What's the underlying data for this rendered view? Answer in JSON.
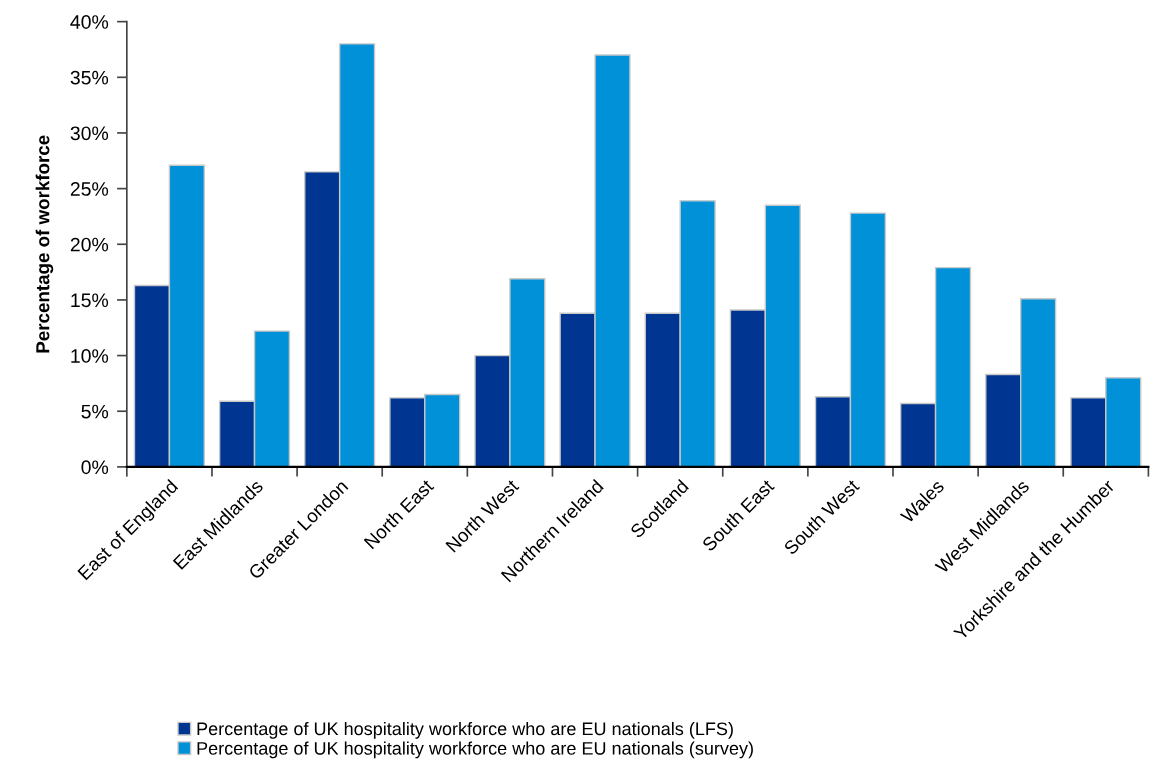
{
  "chart_data": {
    "type": "bar",
    "ylabel": "Percentage of workforce",
    "categories": [
      "East of England",
      "East Midlands",
      "Greater London",
      "North East",
      "North West",
      "Northern Ireland",
      "Scotland",
      "South East",
      "South West",
      "Wales",
      "West Midlands",
      "Yorkshire and the Humber"
    ],
    "series": [
      {
        "name": "Percentage of UK hospitality workforce who are EU nationals (LFS)",
        "color": "#003591",
        "values": [
          16.3,
          5.9,
          26.5,
          6.2,
          10.0,
          13.8,
          13.8,
          14.1,
          6.3,
          5.7,
          8.3,
          6.2
        ]
      },
      {
        "name": "Percentage of UK hospitality workforce who are EU nationals (survey)",
        "color": "#0091d9",
        "values": [
          27.1,
          12.2,
          38.0,
          6.5,
          16.9,
          37.0,
          23.9,
          23.5,
          22.8,
          17.9,
          15.1,
          8.0
        ]
      }
    ],
    "ylim": [
      0,
      40
    ],
    "yticks": [
      {
        "value": 0,
        "label": "0%"
      },
      {
        "value": 5,
        "label": "5%"
      },
      {
        "value": 10,
        "label": "10%"
      },
      {
        "value": 15,
        "label": "15%"
      },
      {
        "value": 20,
        "label": "20%"
      },
      {
        "value": 25,
        "label": "25%"
      },
      {
        "value": 30,
        "label": "30%"
      },
      {
        "value": 35,
        "label": "35%"
      },
      {
        "value": 40,
        "label": "40%"
      }
    ],
    "grid": false,
    "legend": "bottom"
  }
}
